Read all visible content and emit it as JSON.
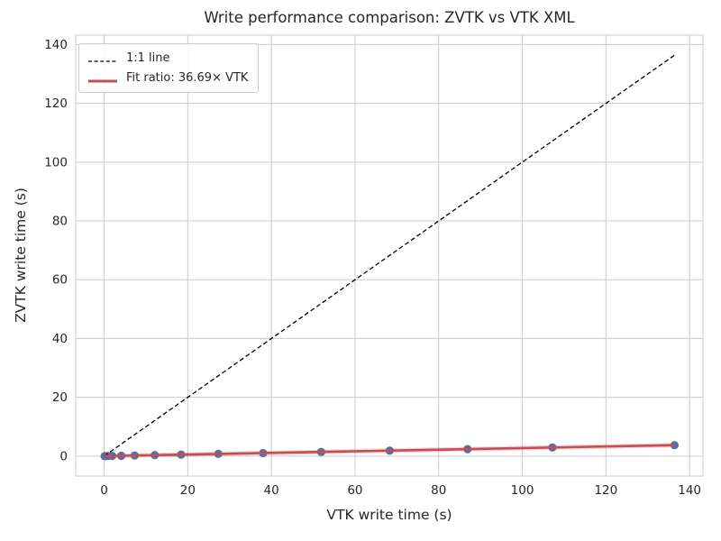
{
  "chart_data": {
    "type": "scatter",
    "title": "Write performance comparison: ZVTK vs VTK XML",
    "xlabel": "VTK write time (s)",
    "ylabel": "ZVTK write time (s)",
    "xlim": [
      -6.8,
      143.2
    ],
    "ylim": [
      -6.8,
      143.2
    ],
    "xticks": [
      0,
      20,
      40,
      60,
      80,
      100,
      120,
      140
    ],
    "yticks": [
      0,
      20,
      40,
      60,
      80,
      100,
      120,
      140
    ],
    "grid": true,
    "grid_color": "#cccccc",
    "axes_edge_color": "#cccccc",
    "background": "#ffffff",
    "text_color": "#262626",
    "fit_ratio": 36.69,
    "points": {
      "name": "zvtk-vs-vtk-write-times",
      "marker": "circle",
      "color": "#4C72B0",
      "x": [
        0.12,
        0.35,
        0.9,
        1.9,
        4.1,
        7.3,
        12.1,
        18.4,
        27.3,
        38.0,
        51.9,
        68.3,
        86.9,
        107.2,
        136.4
      ],
      "y": [
        0.003,
        0.01,
        0.025,
        0.052,
        0.112,
        0.199,
        0.33,
        0.502,
        0.744,
        1.036,
        1.415,
        1.862,
        2.369,
        2.922,
        3.718
      ]
    },
    "lines": [
      {
        "name": "1:1 line",
        "style": "dashed",
        "color": "#000000",
        "width": 1.3,
        "x": [
          0,
          136.4
        ],
        "y": [
          0,
          136.4
        ]
      },
      {
        "name": "fit line",
        "style": "solid",
        "color": "#C44E52",
        "width": 2.6,
        "x": [
          0,
          136.4
        ],
        "y": [
          0,
          3.718
        ]
      }
    ],
    "legend": {
      "position": "upper-left",
      "entries": [
        {
          "label": "1:1 line",
          "color": "#000000",
          "style": "dashed"
        },
        {
          "label": "Fit ratio: 36.69× VTK",
          "color": "#C44E52",
          "style": "solid"
        }
      ]
    }
  }
}
